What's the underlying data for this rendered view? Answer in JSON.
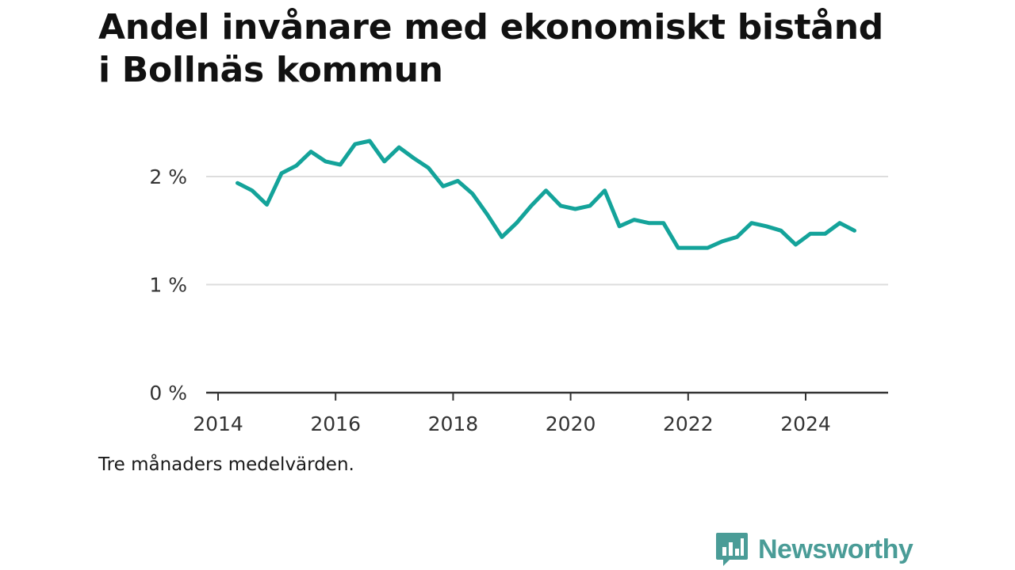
{
  "title": "Andel invånare med ekonomiskt bistånd i Bollnäs kommun",
  "note": "Tre månaders medelvärden.",
  "brand": {
    "name": "Newsworthy",
    "color": "#4a9c97",
    "icon": "bar-chart-speech-bubble-icon"
  },
  "colors": {
    "line": "#14a39a",
    "grid": "#dddddd",
    "axis": "#333333"
  },
  "chart_data": {
    "type": "line",
    "title": "Andel invånare med ekonomiskt bistånd i Bollnäs kommun",
    "xlabel": "",
    "ylabel": "",
    "xlim": [
      2014,
      2025.3
    ],
    "ylim": [
      0,
      2.5
    ],
    "grid": true,
    "x_ticks": [
      {
        "value": 2014,
        "label": "2014"
      },
      {
        "value": 2016,
        "label": "2016"
      },
      {
        "value": 2018,
        "label": "2018"
      },
      {
        "value": 2020,
        "label": "2020"
      },
      {
        "value": 2022,
        "label": "2022"
      },
      {
        "value": 2024,
        "label": "2024"
      }
    ],
    "y_ticks": [
      {
        "value": 0,
        "label": "0 %"
      },
      {
        "value": 1,
        "label": "1 %"
      },
      {
        "value": 2,
        "label": "2 %"
      }
    ],
    "series": [
      {
        "name": "",
        "x": [
          2014.33,
          2014.58,
          2014.83,
          2015.08,
          2015.33,
          2015.58,
          2015.83,
          2016.08,
          2016.33,
          2016.58,
          2016.83,
          2017.08,
          2017.33,
          2017.58,
          2017.83,
          2018.08,
          2018.33,
          2018.58,
          2018.83,
          2019.08,
          2019.33,
          2019.58,
          2019.83,
          2020.08,
          2020.33,
          2020.58,
          2020.83,
          2021.08,
          2021.33,
          2021.58,
          2021.83,
          2022.08,
          2022.33,
          2022.58,
          2022.83,
          2023.08,
          2023.33,
          2023.58,
          2023.83,
          2024.08,
          2024.33,
          2024.58,
          2024.83
        ],
        "y": [
          1.94,
          1.87,
          1.74,
          2.03,
          2.1,
          2.23,
          2.14,
          2.11,
          2.3,
          2.33,
          2.14,
          2.27,
          2.17,
          2.08,
          1.91,
          1.96,
          1.84,
          1.65,
          1.44,
          1.57,
          1.73,
          1.87,
          1.73,
          1.7,
          1.73,
          1.87,
          1.54,
          1.6,
          1.57,
          1.57,
          1.34,
          1.34,
          1.34,
          1.4,
          1.44,
          1.57,
          1.54,
          1.5,
          1.37,
          1.47,
          1.47,
          1.57,
          1.5
        ]
      }
    ]
  }
}
